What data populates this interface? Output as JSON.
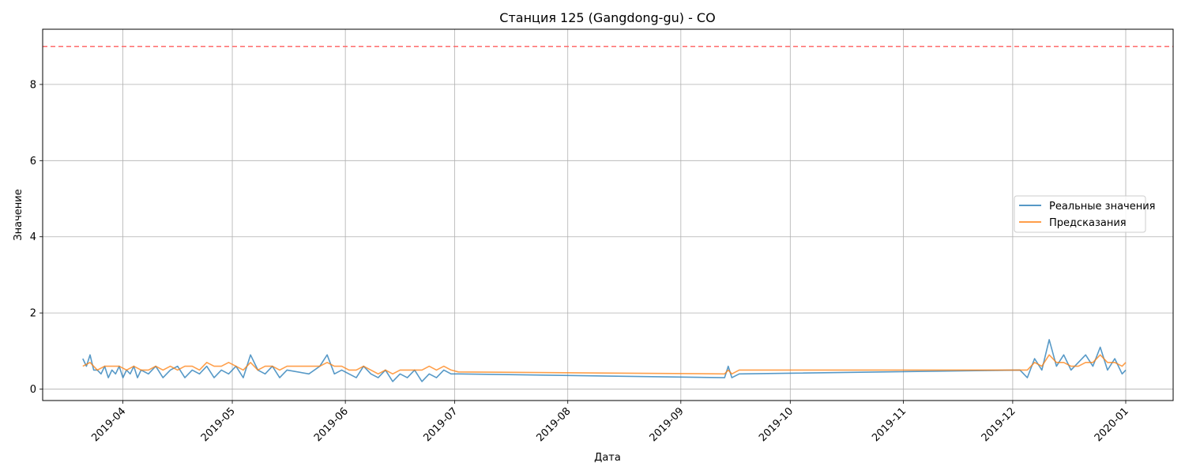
{
  "chart_data": {
    "type": "line",
    "title": "Станция 125 (Gangdong-gu) - CO",
    "xlabel": "Дата",
    "ylabel": "Значение",
    "xlim": [
      "2019-03-10",
      "2020-01-14"
    ],
    "ylim": [
      -0.3,
      9.45
    ],
    "x_ticks": [
      "2019-04",
      "2019-05",
      "2019-06",
      "2019-07",
      "2019-08",
      "2019-09",
      "2019-10",
      "2019-11",
      "2019-12",
      "2020-01"
    ],
    "y_ticks": [
      0,
      2,
      4,
      6,
      8
    ],
    "grid": true,
    "legend_position": "center-right",
    "threshold": {
      "value": 9,
      "color": "#ff6b6b",
      "style": "dashed"
    },
    "series": [
      {
        "name": "Реальные значения",
        "color": "#1f77b4",
        "points": [
          [
            "2019-03-21",
            0.8
          ],
          [
            "2019-03-22",
            0.6
          ],
          [
            "2019-03-23",
            0.9
          ],
          [
            "2019-03-24",
            0.5
          ],
          [
            "2019-03-25",
            0.5
          ],
          [
            "2019-03-26",
            0.4
          ],
          [
            "2019-03-27",
            0.6
          ],
          [
            "2019-03-28",
            0.3
          ],
          [
            "2019-03-29",
            0.5
          ],
          [
            "2019-03-30",
            0.4
          ],
          [
            "2019-03-31",
            0.6
          ],
          [
            "2019-04-01",
            0.3
          ],
          [
            "2019-04-02",
            0.5
          ],
          [
            "2019-04-03",
            0.4
          ],
          [
            "2019-04-04",
            0.6
          ],
          [
            "2019-04-05",
            0.3
          ],
          [
            "2019-04-06",
            0.5
          ],
          [
            "2019-04-08",
            0.4
          ],
          [
            "2019-04-10",
            0.6
          ],
          [
            "2019-04-12",
            0.3
          ],
          [
            "2019-04-14",
            0.5
          ],
          [
            "2019-04-16",
            0.6
          ],
          [
            "2019-04-18",
            0.3
          ],
          [
            "2019-04-20",
            0.5
          ],
          [
            "2019-04-22",
            0.4
          ],
          [
            "2019-04-24",
            0.6
          ],
          [
            "2019-04-26",
            0.3
          ],
          [
            "2019-04-28",
            0.5
          ],
          [
            "2019-04-30",
            0.4
          ],
          [
            "2019-05-02",
            0.6
          ],
          [
            "2019-05-04",
            0.3
          ],
          [
            "2019-05-06",
            0.9
          ],
          [
            "2019-05-08",
            0.5
          ],
          [
            "2019-05-10",
            0.4
          ],
          [
            "2019-05-12",
            0.6
          ],
          [
            "2019-05-14",
            0.3
          ],
          [
            "2019-05-16",
            0.5
          ],
          [
            "2019-05-22",
            0.4
          ],
          [
            "2019-05-25",
            0.6
          ],
          [
            "2019-05-27",
            0.9
          ],
          [
            "2019-05-29",
            0.4
          ],
          [
            "2019-05-31",
            0.5
          ],
          [
            "2019-06-02",
            0.4
          ],
          [
            "2019-06-04",
            0.3
          ],
          [
            "2019-06-06",
            0.6
          ],
          [
            "2019-06-08",
            0.4
          ],
          [
            "2019-06-10",
            0.3
          ],
          [
            "2019-06-12",
            0.5
          ],
          [
            "2019-06-14",
            0.2
          ],
          [
            "2019-06-16",
            0.4
          ],
          [
            "2019-06-18",
            0.3
          ],
          [
            "2019-06-20",
            0.5
          ],
          [
            "2019-06-22",
            0.2
          ],
          [
            "2019-06-24",
            0.4
          ],
          [
            "2019-06-26",
            0.3
          ],
          [
            "2019-06-28",
            0.5
          ],
          [
            "2019-06-30",
            0.4
          ],
          [
            "2019-07-02",
            0.4
          ],
          [
            "2019-09-13",
            0.3
          ],
          [
            "2019-09-14",
            0.6
          ],
          [
            "2019-09-15",
            0.3
          ],
          [
            "2019-09-17",
            0.4
          ],
          [
            "2019-12-03",
            0.5
          ],
          [
            "2019-12-05",
            0.3
          ],
          [
            "2019-12-07",
            0.8
          ],
          [
            "2019-12-09",
            0.5
          ],
          [
            "2019-12-11",
            1.3
          ],
          [
            "2019-12-13",
            0.6
          ],
          [
            "2019-12-15",
            0.9
          ],
          [
            "2019-12-17",
            0.5
          ],
          [
            "2019-12-19",
            0.7
          ],
          [
            "2019-12-21",
            0.9
          ],
          [
            "2019-12-23",
            0.6
          ],
          [
            "2019-12-25",
            1.1
          ],
          [
            "2019-12-27",
            0.5
          ],
          [
            "2019-12-29",
            0.8
          ],
          [
            "2019-12-31",
            0.4
          ],
          [
            "2020-01-01",
            0.5
          ]
        ]
      },
      {
        "name": "Предсказания",
        "color": "#ff7f0e",
        "points": [
          [
            "2019-03-21",
            0.6
          ],
          [
            "2019-03-23",
            0.7
          ],
          [
            "2019-03-25",
            0.5
          ],
          [
            "2019-03-27",
            0.6
          ],
          [
            "2019-03-29",
            0.6
          ],
          [
            "2019-03-31",
            0.6
          ],
          [
            "2019-04-02",
            0.5
          ],
          [
            "2019-04-04",
            0.6
          ],
          [
            "2019-04-06",
            0.5
          ],
          [
            "2019-04-08",
            0.5
          ],
          [
            "2019-04-10",
            0.6
          ],
          [
            "2019-04-12",
            0.5
          ],
          [
            "2019-04-14",
            0.6
          ],
          [
            "2019-04-16",
            0.5
          ],
          [
            "2019-04-18",
            0.6
          ],
          [
            "2019-04-20",
            0.6
          ],
          [
            "2019-04-22",
            0.5
          ],
          [
            "2019-04-24",
            0.7
          ],
          [
            "2019-04-26",
            0.6
          ],
          [
            "2019-04-28",
            0.6
          ],
          [
            "2019-04-30",
            0.7
          ],
          [
            "2019-05-02",
            0.6
          ],
          [
            "2019-05-04",
            0.5
          ],
          [
            "2019-05-06",
            0.7
          ],
          [
            "2019-05-08",
            0.5
          ],
          [
            "2019-05-10",
            0.6
          ],
          [
            "2019-05-12",
            0.6
          ],
          [
            "2019-05-14",
            0.5
          ],
          [
            "2019-05-16",
            0.6
          ],
          [
            "2019-05-22",
            0.6
          ],
          [
            "2019-05-25",
            0.6
          ],
          [
            "2019-05-27",
            0.7
          ],
          [
            "2019-05-29",
            0.6
          ],
          [
            "2019-05-31",
            0.6
          ],
          [
            "2019-06-02",
            0.5
          ],
          [
            "2019-06-04",
            0.5
          ],
          [
            "2019-06-06",
            0.6
          ],
          [
            "2019-06-08",
            0.5
          ],
          [
            "2019-06-10",
            0.4
          ],
          [
            "2019-06-12",
            0.5
          ],
          [
            "2019-06-14",
            0.4
          ],
          [
            "2019-06-16",
            0.5
          ],
          [
            "2019-06-18",
            0.5
          ],
          [
            "2019-06-20",
            0.5
          ],
          [
            "2019-06-22",
            0.5
          ],
          [
            "2019-06-24",
            0.6
          ],
          [
            "2019-06-26",
            0.5
          ],
          [
            "2019-06-28",
            0.6
          ],
          [
            "2019-06-30",
            0.5
          ],
          [
            "2019-07-02",
            0.45
          ],
          [
            "2019-09-13",
            0.4
          ],
          [
            "2019-09-14",
            0.5
          ],
          [
            "2019-09-15",
            0.4
          ],
          [
            "2019-09-17",
            0.5
          ],
          [
            "2019-12-03",
            0.5
          ],
          [
            "2019-12-05",
            0.5
          ],
          [
            "2019-12-07",
            0.7
          ],
          [
            "2019-12-09",
            0.6
          ],
          [
            "2019-12-11",
            0.9
          ],
          [
            "2019-12-13",
            0.7
          ],
          [
            "2019-12-15",
            0.7
          ],
          [
            "2019-12-17",
            0.6
          ],
          [
            "2019-12-19",
            0.6
          ],
          [
            "2019-12-21",
            0.7
          ],
          [
            "2019-12-23",
            0.7
          ],
          [
            "2019-12-25",
            0.9
          ],
          [
            "2019-12-27",
            0.7
          ],
          [
            "2019-12-29",
            0.7
          ],
          [
            "2019-12-31",
            0.6
          ],
          [
            "2020-01-01",
            0.7
          ]
        ]
      }
    ]
  }
}
